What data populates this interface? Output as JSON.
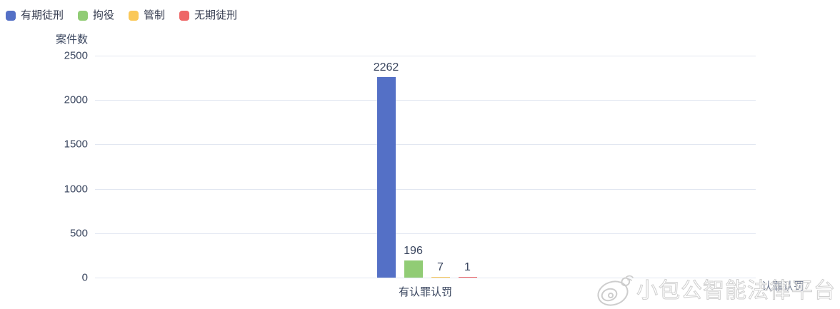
{
  "legend": {
    "items": [
      {
        "label": "有期徒刑",
        "color": "#5470C6"
      },
      {
        "label": "拘役",
        "color": "#91CC75"
      },
      {
        "label": "管制",
        "color": "#FAC858"
      },
      {
        "label": "无期徒刑",
        "color": "#EE6666"
      }
    ]
  },
  "chart_data": {
    "type": "bar",
    "title": "",
    "categories": [
      "有认罪认罚"
    ],
    "series": [
      {
        "name": "有期徒刑",
        "values": [
          2262
        ],
        "color": "#5470C6"
      },
      {
        "name": "拘役",
        "values": [
          196
        ],
        "color": "#91CC75"
      },
      {
        "name": "管制",
        "values": [
          7
        ],
        "color": "#FAC858"
      },
      {
        "name": "无期徒刑",
        "values": [
          1
        ],
        "color": "#EE6666"
      }
    ],
    "xlabel": "认罪认罚",
    "ylabel": "案件数",
    "ylim": [
      0,
      2500
    ],
    "yticks": [
      0,
      500,
      1000,
      1500,
      2000,
      2500
    ],
    "grid": true,
    "legend_position": "top-left",
    "value_labels": true,
    "colors": {
      "axis_text": "#39455e",
      "gridline": "#e2e7f1"
    }
  },
  "watermark": {
    "text": "小包公智能法律平台",
    "logo": "xiaobaogong-logo"
  }
}
